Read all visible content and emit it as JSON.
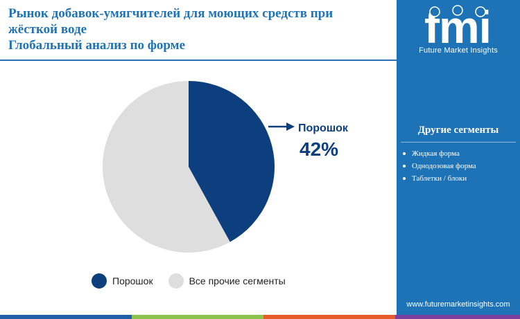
{
  "title": {
    "line1": "Рынок добавок-умягчителей для моющих средств при",
    "line2": "жёсткой воде",
    "line3": "Глобальный анализ по форме"
  },
  "brand": {
    "logo_text": "fmi",
    "tagline": "Future Market Insights",
    "url": "www.futuremarketinsights.com"
  },
  "sidebar": {
    "heading": "Другие сегменты",
    "items": [
      "Жидкая форма",
      "Однодозовая форма",
      "Таблетки / блоки"
    ]
  },
  "colors": {
    "primary": "#0d3f7f",
    "other": "#dedede",
    "sidebar": "#1e73b6",
    "title": "#1f73b7",
    "bar": [
      "#1f5fa8",
      "#8bc34a",
      "#e55b2a",
      "#7b3fa0"
    ]
  },
  "chart_data": {
    "type": "pie",
    "slices": [
      {
        "label": "Порошок",
        "value": 42,
        "color": "#0d3f7f"
      },
      {
        "label": "Все прочие сегменты",
        "value": 58,
        "color": "#dedede"
      }
    ],
    "callout": {
      "label": "Порошок",
      "value_text": "42%"
    },
    "legend": [
      "Порошок",
      "Все прочие сегменты"
    ],
    "legend_position": "bottom"
  }
}
